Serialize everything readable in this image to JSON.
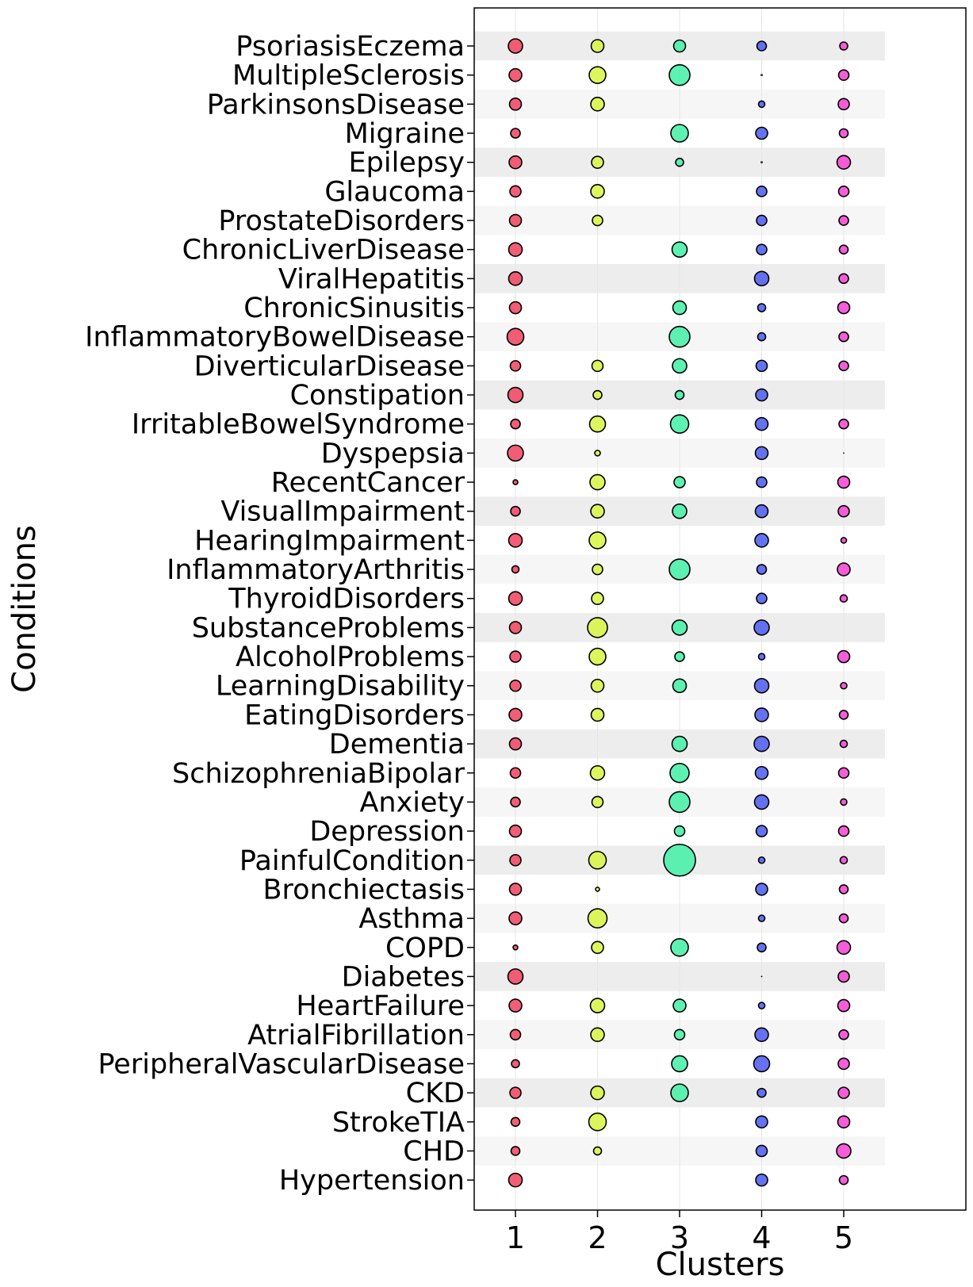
{
  "chart_data": {
    "type": "scatter",
    "xlabel": "Clusters",
    "ylabel": "Conditions",
    "x_categories": [
      "1",
      "2",
      "3",
      "4",
      "5"
    ],
    "y_categories": [
      "PsoriasisEczema",
      "MultipleSclerosis",
      "ParkinsonsDisease",
      "Migraine",
      "Epilepsy",
      "Glaucoma",
      "ProstateDisorders",
      "ChronicLiverDisease",
      "ViralHepatitis",
      "ChronicSinusitis",
      "InflammatoryBowelDisease",
      "DiverticularDisease",
      "Constipation",
      "IrritableBowelSyndrome",
      "Dyspepsia",
      "RecentCancer",
      "VisualImpairment",
      "HearingImpairment",
      "InflammatoryArthritis",
      "ThyroidDisorders",
      "SubstanceProblems",
      "AlcoholProblems",
      "LearningDisability",
      "EatingDisorders",
      "Dementia",
      "SchizophreniaBipolar",
      "Anxiety",
      "Depression",
      "PainfulCondition",
      "Bronchiectasis",
      "Asthma",
      "COPD",
      "Diabetes",
      "HeartFailure",
      "AtrialFibrillation",
      "PeripheralVascularDisease",
      "CKD",
      "StrokeTIA",
      "CHD",
      "Hypertension"
    ],
    "cluster_colors": [
      "#f0425e",
      "#d8f542",
      "#42f0a5",
      "#4a5af0",
      "#f542d2"
    ],
    "bubble_size_unit": "relative marker diameter",
    "sizes": [
      [
        18,
        16,
        15,
        12,
        10
      ],
      [
        16,
        21,
        26,
        2,
        13
      ],
      [
        15,
        17,
        0,
        8,
        14
      ],
      [
        12,
        0,
        22,
        15,
        11
      ],
      [
        16,
        15,
        10,
        2,
        17
      ],
      [
        14,
        17,
        0,
        13,
        13
      ],
      [
        15,
        13,
        0,
        13,
        12
      ],
      [
        17,
        0,
        19,
        13,
        11
      ],
      [
        17,
        0,
        0,
        18,
        12
      ],
      [
        15,
        0,
        17,
        10,
        15
      ],
      [
        21,
        0,
        26,
        10,
        12
      ],
      [
        13,
        14,
        18,
        14,
        12
      ],
      [
        19,
        11,
        11,
        15,
        0
      ],
      [
        12,
        20,
        23,
        16,
        12
      ],
      [
        20,
        7,
        0,
        16,
        1
      ],
      [
        6,
        19,
        14,
        13,
        15
      ],
      [
        12,
        17,
        18,
        16,
        14
      ],
      [
        17,
        21,
        0,
        17,
        7
      ],
      [
        9,
        13,
        26,
        12,
        16
      ],
      [
        17,
        15,
        0,
        13,
        9
      ],
      [
        15,
        25,
        19,
        19,
        0
      ],
      [
        14,
        21,
        12,
        8,
        15
      ],
      [
        14,
        16,
        17,
        18,
        8
      ],
      [
        16,
        16,
        0,
        17,
        11
      ],
      [
        15,
        0,
        19,
        19,
        9
      ],
      [
        13,
        18,
        24,
        16,
        13
      ],
      [
        12,
        14,
        26,
        18,
        8
      ],
      [
        15,
        0,
        13,
        14,
        13
      ],
      [
        14,
        22,
        40,
        8,
        9
      ],
      [
        15,
        5,
        0,
        15,
        11
      ],
      [
        16,
        24,
        0,
        8,
        11
      ],
      [
        6,
        15,
        22,
        11,
        17
      ],
      [
        19,
        0,
        0,
        1,
        14
      ],
      [
        16,
        18,
        16,
        8,
        15
      ],
      [
        13,
        17,
        13,
        17,
        12
      ],
      [
        10,
        0,
        20,
        20,
        14
      ],
      [
        14,
        17,
        22,
        11,
        14
      ],
      [
        11,
        22,
        0,
        15,
        15
      ],
      [
        11,
        10,
        0,
        14,
        18
      ],
      [
        17,
        0,
        0,
        15,
        11
      ]
    ],
    "xlim": [
      0.5,
      6.5
    ],
    "grid": true,
    "legend": "none"
  }
}
